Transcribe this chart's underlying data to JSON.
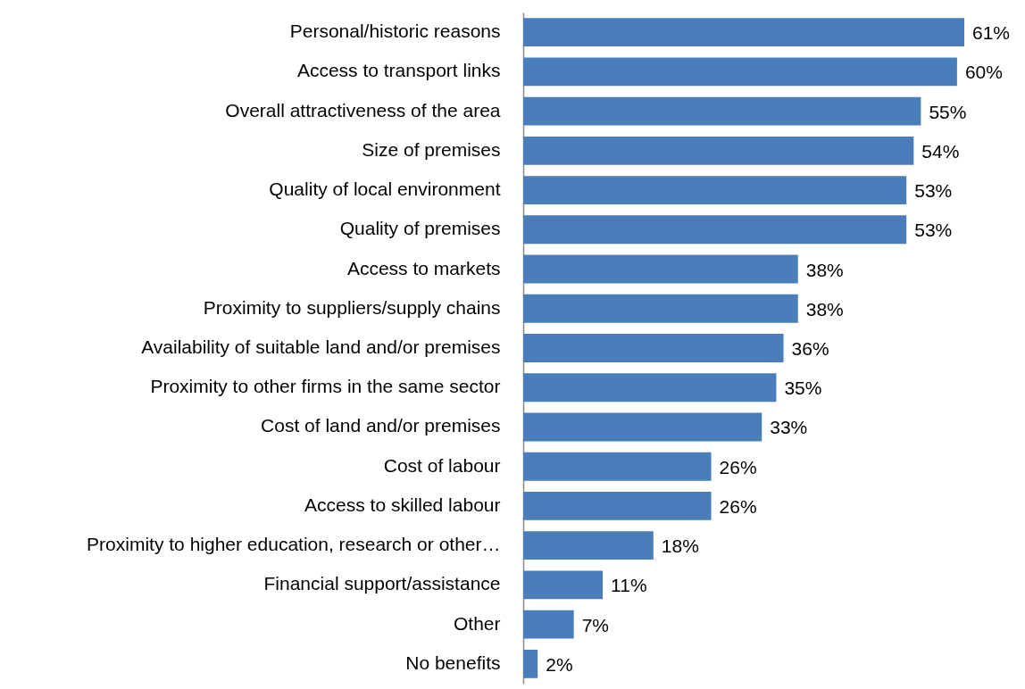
{
  "chart_data": {
    "type": "bar",
    "orientation": "horizontal",
    "color": "#4a7ebb",
    "categories": [
      "Personal/historic reasons",
      "Access to transport links",
      "Overall attractiveness of the area",
      "Size of premises",
      "Quality of local environment",
      "Quality of premises",
      "Access to markets",
      "Proximity to suppliers/supply chains",
      "Availability of suitable land and/or premises",
      "Proximity to other firms in the same sector",
      "Cost of land and/or premises",
      "Cost of labour",
      "Access to skilled labour",
      "Proximity to higher education, research or other…",
      "Financial support/assistance",
      "Other",
      "No benefits"
    ],
    "values": [
      61,
      60,
      55,
      54,
      53,
      53,
      38,
      38,
      36,
      35,
      33,
      26,
      26,
      18,
      11,
      7,
      2
    ],
    "value_labels": [
      "61%",
      "60%",
      "55%",
      "54%",
      "53%",
      "53%",
      "38%",
      "38%",
      "36%",
      "35%",
      "33%",
      "26%",
      "26%",
      "18%",
      "11%",
      "7%",
      "2%"
    ],
    "tick_labels": "y"
  }
}
